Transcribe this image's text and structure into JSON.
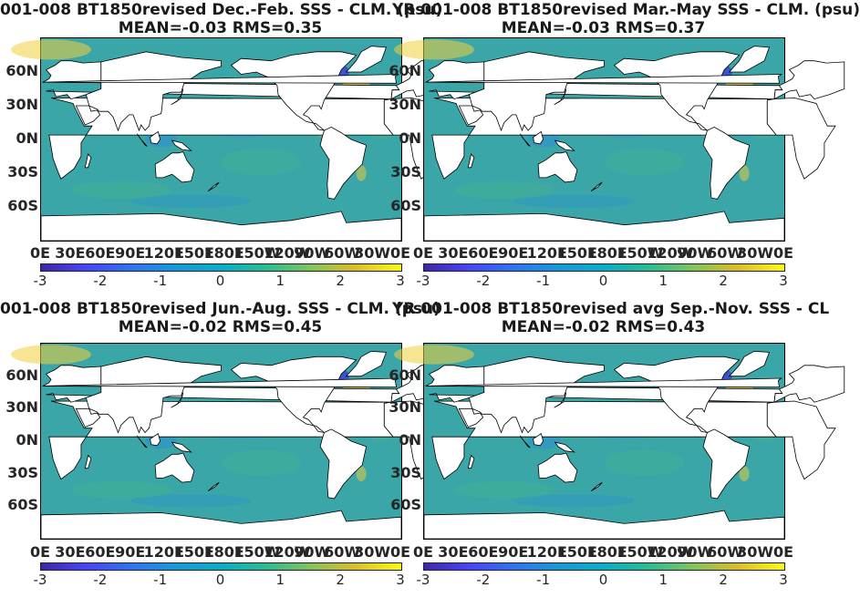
{
  "colors": {
    "land": "#ffffff",
    "ocean_mid": "#3aa6a8",
    "ocean_low": "#2a8fd0",
    "ocean_high": "#f2d03a",
    "ocean_very_low": "#3b3fd8"
  },
  "colormap": [
    "#3e26a8",
    "#4743f8",
    "#2f73f3",
    "#1898dc",
    "#07aec7",
    "#28bc95",
    "#82c45a",
    "#dcbc2a",
    "#f9fb14"
  ],
  "lon_ticks": [
    "0E",
    "30E",
    "60E",
    "90E",
    "120E",
    "150E",
    "180E",
    "150W",
    "120W",
    "90W",
    "60W",
    "30W",
    "0E"
  ],
  "lat_ticks": [
    "60N",
    "30N",
    "0N",
    "30S",
    "60S"
  ],
  "colorbar_ticks": [
    "-3",
    "-2",
    "-1",
    "0",
    "1",
    "2",
    "3"
  ],
  "chart_data": [
    {
      "type": "heatmap",
      "title_line1": "001-008 BT1850revised  Dec.-Feb. SSS - CLM. (psu)",
      "title_line2": "MEAN=-0.03   RMS=0.35",
      "right_label": "YR",
      "right_label2": "001-008",
      "mean": -0.03,
      "rms": 0.35,
      "colorbar_range": [
        -3,
        3
      ],
      "xlim": [
        "0E",
        "0E"
      ],
      "ylim": [
        "90S",
        "90N"
      ]
    },
    {
      "type": "heatmap",
      "title_line1": "YR 001-008 BT1850revised Mar.-May SSS - CLM. (psu)",
      "title_line2": "MEAN=-0.03   RMS=0.37",
      "mean": -0.03,
      "rms": 0.37,
      "colorbar_range": [
        -3,
        3
      ],
      "xlim": [
        "0E",
        "0E"
      ],
      "ylim": [
        "90S",
        "90N"
      ]
    },
    {
      "type": "heatmap",
      "title_line1": "001-008 BT1850revised Jun.-Aug. SSS - CLM. (psu)",
      "title_line2": "MEAN=-0.02   RMS=0.45",
      "mean": -0.02,
      "rms": 0.45,
      "colorbar_range": [
        -3,
        3
      ],
      "xlim": [
        "0E",
        "0E"
      ],
      "ylim": [
        "90S",
        "90N"
      ]
    },
    {
      "type": "heatmap",
      "title_line1": "YR 001-008 BT1850revised avg Sep.-Nov. SSS - CL",
      "title_line2": "MEAN=-0.02   RMS=0.43",
      "mean": -0.02,
      "rms": 0.43,
      "colorbar_range": [
        -3,
        3
      ],
      "xlim": [
        "0E",
        "0E"
      ],
      "ylim": [
        "90S",
        "90N"
      ]
    }
  ]
}
